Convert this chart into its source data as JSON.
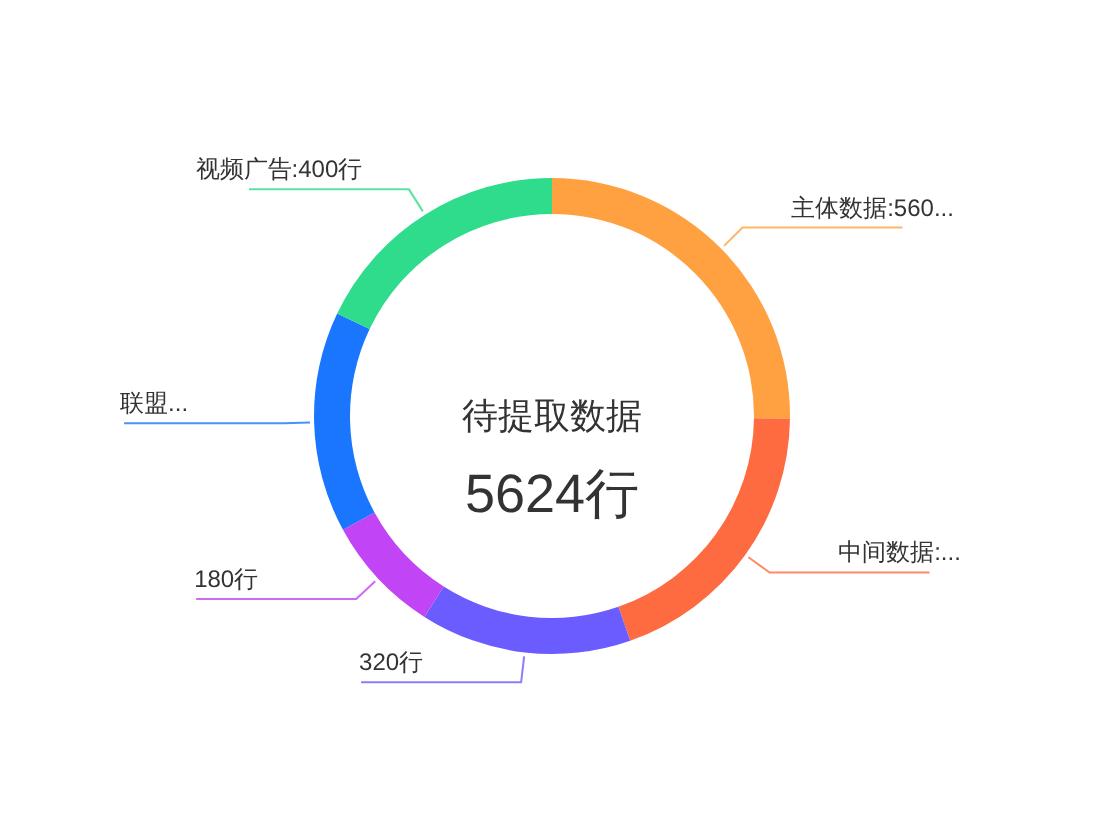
{
  "chart_data": {
    "type": "donut",
    "title": "待提取数据",
    "subtitle": "5624行",
    "categories": [
      "主体数据",
      "中间数据",
      null,
      null,
      "联盟...",
      "视频广告"
    ],
    "values": [
      562,
      435,
      320,
      180,
      335,
      400
    ],
    "value_labels": [
      "560...",
      "...",
      "320行",
      "180行",
      null,
      "400行"
    ],
    "colors": [
      "#ffa141",
      "#ff6b41",
      "#6b5cff",
      "#c144f5",
      "#1b76ff",
      "#2fdc8b"
    ]
  }
}
